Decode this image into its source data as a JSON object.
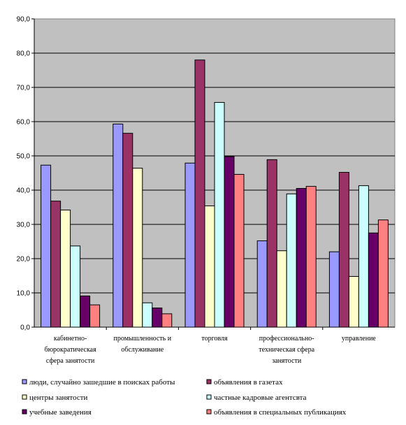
{
  "chart_data": {
    "type": "bar",
    "title": "",
    "xlabel": "",
    "ylabel": "",
    "ylim": [
      0,
      90
    ],
    "yticks": [
      "0,0",
      "10,0",
      "20,0",
      "30,0",
      "40,0",
      "50,0",
      "60,0",
      "70,0",
      "80,0",
      "90,0"
    ],
    "grid": true,
    "legend_position": "bottom",
    "plot_background": "#c0c0c0",
    "categories": [
      [
        "кабинетно-",
        "бюрократическая",
        "сфера занятости"
      ],
      [
        "промышленность и",
        "обслуживание"
      ],
      [
        "торговля"
      ],
      [
        "профессионально-",
        "техническая сфера",
        "занятости"
      ],
      [
        "управление"
      ]
    ],
    "series": [
      {
        "name": "люди, случайно зашедшие в поисках работы",
        "color": "#9999ff",
        "values": [
          47.3,
          59.3,
          47.9,
          25.2,
          22.0
        ]
      },
      {
        "name": "объявления в газетах",
        "color": "#993366",
        "values": [
          36.8,
          56.6,
          78.0,
          48.9,
          45.2
        ]
      },
      {
        "name": "центры занятости",
        "color": "#ffffcc",
        "values": [
          34.2,
          46.4,
          35.4,
          22.3,
          14.8
        ]
      },
      {
        "name": "частные кадровые агентсвта",
        "color": "#ccffff",
        "values": [
          23.7,
          7.1,
          65.6,
          38.9,
          41.3
        ]
      },
      {
        "name": "учебные заведения",
        "color": "#660066",
        "values": [
          9.1,
          5.6,
          49.8,
          40.5,
          27.5
        ]
      },
      {
        "name": "объявления в специальных публикациях",
        "color": "#ff8080",
        "values": [
          6.5,
          3.9,
          44.6,
          41.1,
          31.3
        ]
      }
    ]
  }
}
